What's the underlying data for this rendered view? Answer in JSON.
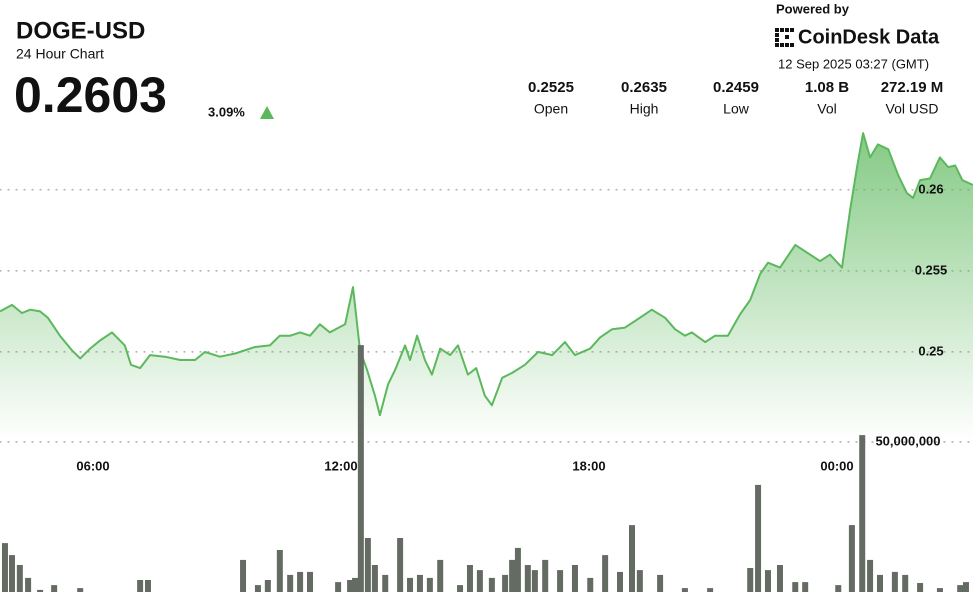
{
  "header": {
    "symbol": "DOGE-USD",
    "subtitle": "24 Hour Chart",
    "price": "0.2603",
    "change": "3.09%",
    "powered_by": "Powered by",
    "brand": "CoinDesk Data",
    "timestamp": "12 Sep 2025 03:27 (GMT)",
    "stats": [
      {
        "value": "0.2525",
        "label": "Open"
      },
      {
        "value": "0.2635",
        "label": "High"
      },
      {
        "value": "0.2459",
        "label": "Low"
      },
      {
        "value": "1.08 B",
        "label": "Vol"
      },
      {
        "value": "272.19 M",
        "label": "Vol USD"
      }
    ]
  },
  "chart_data": {
    "type": "line",
    "xlim": [
      3.75,
      27.29
    ],
    "xticks": [
      {
        "value": 6,
        "label": "06:00"
      },
      {
        "value": 12,
        "label": "12:00"
      },
      {
        "value": 18,
        "label": "18:00"
      },
      {
        "value": 24,
        "label": "00:00"
      }
    ],
    "ylim": [
      0.2445,
      0.264
    ],
    "yticks": [
      0.25,
      0.255,
      0.26
    ],
    "y2lim": [
      0,
      150000000
    ],
    "y2ticks": [
      {
        "value": 50000000,
        "label": "50,000,000"
      }
    ],
    "grid": true,
    "series": [
      {
        "color": "#5cb85c",
        "x": [
          3.75,
          4.04,
          4.28,
          4.48,
          4.72,
          4.91,
          5.2,
          5.49,
          5.69,
          5.93,
          6.17,
          6.46,
          6.77,
          6.92,
          7.14,
          7.38,
          7.74,
          8.11,
          8.47,
          8.71,
          9.07,
          9.44,
          9.92,
          10.28,
          10.52,
          10.77,
          11.01,
          11.25,
          11.49,
          11.73,
          12.1,
          12.29,
          12.46,
          12.63,
          12.82,
          12.94,
          13.14,
          13.31,
          13.55,
          13.67,
          13.84,
          14.03,
          14.2,
          14.4,
          14.64,
          14.83,
          15.07,
          15.27,
          15.48,
          15.65,
          15.9,
          16.14,
          16.45,
          16.77,
          17.11,
          17.42,
          17.66,
          18.03,
          18.27,
          18.56,
          18.87,
          19.23,
          19.52,
          19.84,
          20.08,
          20.32,
          20.49,
          20.81,
          21.05,
          21.36,
          21.65,
          21.9,
          22.14,
          22.33,
          22.62,
          22.99,
          23.35,
          23.59,
          23.83,
          24.12,
          24.32,
          24.49,
          24.63,
          24.8,
          24.99,
          25.24,
          25.48,
          25.69,
          25.84,
          26.01,
          26.25,
          26.49,
          26.69,
          26.86,
          27.03,
          27.29
        ],
        "values": [
          0.2525,
          0.2529,
          0.2524,
          0.2526,
          0.2525,
          0.2521,
          0.251,
          0.2501,
          0.2496,
          0.2502,
          0.2507,
          0.2512,
          0.2504,
          0.2492,
          0.249,
          0.2498,
          0.2497,
          0.2495,
          0.2495,
          0.25,
          0.2497,
          0.2499,
          0.2503,
          0.2504,
          0.251,
          0.251,
          0.2512,
          0.251,
          0.2517,
          0.2512,
          0.2517,
          0.254,
          0.2501,
          0.2489,
          0.2473,
          0.2461,
          0.248,
          0.2489,
          0.2504,
          0.2495,
          0.251,
          0.2495,
          0.2486,
          0.2502,
          0.2498,
          0.2504,
          0.2486,
          0.249,
          0.2473,
          0.2467,
          0.2484,
          0.2487,
          0.2492,
          0.25,
          0.2498,
          0.2506,
          0.2498,
          0.2502,
          0.2509,
          0.2514,
          0.2515,
          0.2521,
          0.2526,
          0.2521,
          0.2514,
          0.251,
          0.2512,
          0.2506,
          0.251,
          0.251,
          0.2523,
          0.2532,
          0.2548,
          0.2555,
          0.2552,
          0.2566,
          0.256,
          0.2556,
          0.256,
          0.2552,
          0.2588,
          0.2615,
          0.2635,
          0.262,
          0.2628,
          0.2625,
          0.2609,
          0.2598,
          0.2595,
          0.2606,
          0.2607,
          0.262,
          0.2614,
          0.2615,
          0.2606,
          0.2603
        ]
      },
      {
        "type": "bar",
        "axis": "y2",
        "color": "#646b62",
        "x": [
          3.87,
          4.04,
          4.23,
          4.43,
          4.72,
          5.06,
          5.69,
          7.14,
          7.33,
          9.63,
          9.99,
          10.23,
          10.52,
          10.77,
          11.01,
          11.25,
          11.93,
          12.22,
          12.34,
          12.48,
          12.65,
          12.82,
          13.07,
          13.43,
          13.67,
          13.91,
          14.15,
          14.4,
          14.88,
          15.12,
          15.36,
          15.65,
          15.97,
          16.14,
          16.28,
          16.52,
          16.69,
          16.94,
          17.3,
          17.66,
          18.03,
          18.39,
          18.75,
          19.04,
          19.23,
          19.72,
          20.32,
          20.93,
          21.9,
          22.09,
          22.33,
          22.62,
          22.99,
          23.23,
          24.03,
          24.36,
          24.61,
          24.8,
          25.04,
          25.4,
          25.65,
          26.01,
          26.49,
          26.98,
          27.12
        ],
        "values": [
          16300000,
          12300000,
          9000000,
          4700000,
          700000,
          2300000,
          1300000,
          4000000,
          4000000,
          10700000,
          2300000,
          4000000,
          14000000,
          5700000,
          6700000,
          6700000,
          3300000,
          4000000,
          4700000,
          82300000,
          18000000,
          9000000,
          5700000,
          18000000,
          4700000,
          5700000,
          4700000,
          10700000,
          2300000,
          9000000,
          7300000,
          4700000,
          5700000,
          10700000,
          14700000,
          9000000,
          7300000,
          10700000,
          7300000,
          9000000,
          4700000,
          12300000,
          6700000,
          22300000,
          7300000,
          5700000,
          1300000,
          1300000,
          8000000,
          35700000,
          7300000,
          9000000,
          3300000,
          3300000,
          2300000,
          22300000,
          52300000,
          10700000,
          5700000,
          6700000,
          5700000,
          3000000,
          1300000,
          2300000,
          3300000
        ]
      }
    ]
  }
}
